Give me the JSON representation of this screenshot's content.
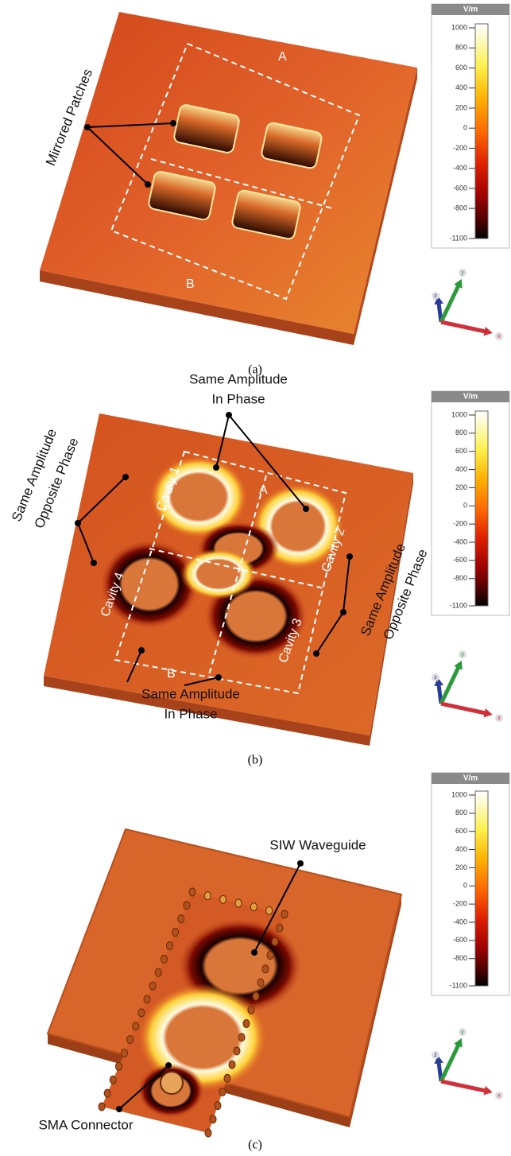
{
  "colorbar": {
    "unit": "V/m",
    "ticks": [
      1000,
      800,
      600,
      400,
      200,
      0,
      -200,
      -400,
      -600,
      -800,
      -1100
    ]
  },
  "axis_labels": [
    "x",
    "y",
    "z"
  ],
  "panels": [
    {
      "caption": "(a)",
      "annotations": [
        "Mirrored Patches",
        "A",
        "B"
      ]
    },
    {
      "caption": "(b)",
      "annotations": [
        "Same Amplitude",
        "In Phase",
        "Same Amplitude",
        "Opposite Phase",
        "Same Amplitude",
        "Opposite Phase",
        "Same Amplitude",
        "In Phase",
        "Cavity 1",
        "Cavity 2",
        "Cavity 3",
        "Cavity 4",
        "A",
        "B"
      ]
    },
    {
      "caption": "(c)",
      "annotations": [
        "SIW Waveguide",
        "SMA Connector"
      ]
    }
  ]
}
